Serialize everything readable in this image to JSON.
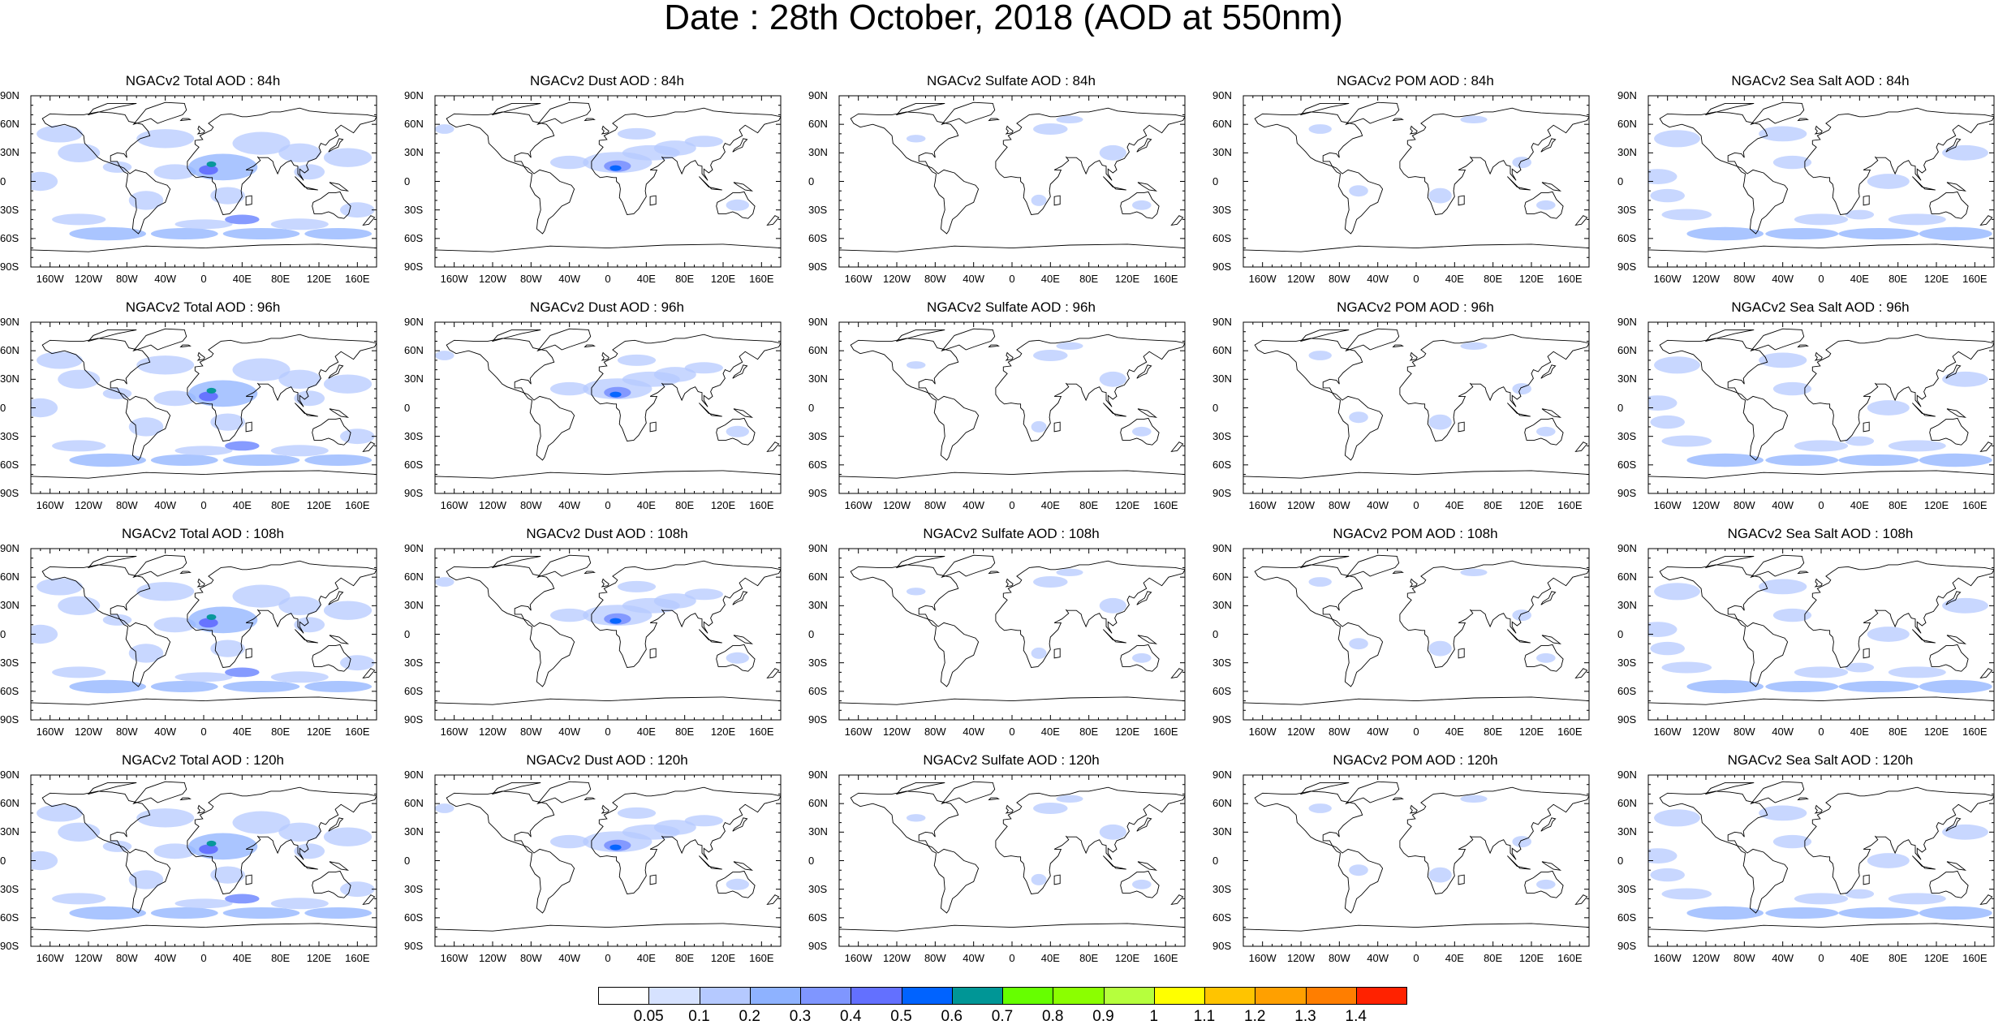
{
  "title": "Date : 28th October, 2018 (AOD at 550nm)",
  "lat_ticks": [
    "90N",
    "60N",
    "30N",
    "0",
    "30S",
    "60S",
    "90S"
  ],
  "lon_ticks": [
    "160W",
    "120W",
    "80W",
    "40W",
    "0",
    "40E",
    "80E",
    "120E",
    "160E"
  ],
  "panels": [
    {
      "title": "NGACv2 Total AOD : 84h",
      "species": "total"
    },
    {
      "title": "NGACv2 Dust AOD : 84h",
      "species": "dust"
    },
    {
      "title": "NGACv2 Sulfate AOD : 84h",
      "species": "sulfate"
    },
    {
      "title": "NGACv2 POM AOD : 84h",
      "species": "pom"
    },
    {
      "title": "NGACv2 Sea Salt AOD : 84h",
      "species": "seasalt"
    },
    {
      "title": "NGACv2 Total AOD : 96h",
      "species": "total"
    },
    {
      "title": "NGACv2 Dust AOD : 96h",
      "species": "dust"
    },
    {
      "title": "NGACv2 Sulfate AOD : 96h",
      "species": "sulfate"
    },
    {
      "title": "NGACv2 POM AOD : 96h",
      "species": "pom"
    },
    {
      "title": "NGACv2 Sea Salt AOD : 96h",
      "species": "seasalt"
    },
    {
      "title": "NGACv2 Total AOD : 108h",
      "species": "total"
    },
    {
      "title": "NGACv2 Dust AOD : 108h",
      "species": "dust"
    },
    {
      "title": "NGACv2 Sulfate AOD : 108h",
      "species": "sulfate"
    },
    {
      "title": "NGACv2 POM AOD : 108h",
      "species": "pom"
    },
    {
      "title": "NGACv2 Sea Salt AOD : 108h",
      "species": "seasalt"
    },
    {
      "title": "NGACv2 Total AOD : 120h",
      "species": "total"
    },
    {
      "title": "NGACv2 Dust AOD : 120h",
      "species": "dust"
    },
    {
      "title": "NGACv2 Sulfate AOD : 120h",
      "species": "sulfate"
    },
    {
      "title": "NGACv2 POM AOD : 120h",
      "species": "pom"
    },
    {
      "title": "NGACv2 Sea Salt  AOD : 120h",
      "species": "seasalt"
    }
  ],
  "colorbar": {
    "colors": [
      "#ffffff",
      "#d6e2ff",
      "#b5c9ff",
      "#8eb2ff",
      "#7f96ff",
      "#6370ff",
      "#0063ff",
      "#009696",
      "#66ff00",
      "#8bff00",
      "#b6ff3d",
      "#ffff00",
      "#ffc400",
      "#ffa000",
      "#ff7e00",
      "#ff2200"
    ],
    "labels": [
      "0.05",
      "0.1",
      "0.2",
      "0.3",
      "0.4",
      "0.5",
      "0.6",
      "0.7",
      "0.8",
      "0.9",
      "1",
      "1.1",
      "1.2",
      "1.3",
      "1.4"
    ]
  }
}
